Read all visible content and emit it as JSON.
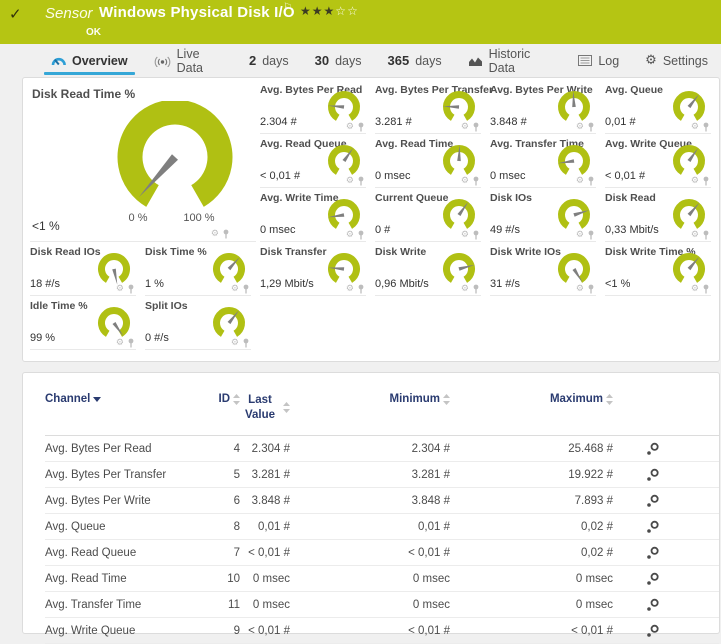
{
  "header": {
    "check": "✓",
    "sensor_label": "Sensor",
    "title": "Windows Physical Disk I/O",
    "flag": "⚐",
    "stars_filled": 3,
    "stars_total": 5,
    "status": "OK"
  },
  "tabs": [
    {
      "id": "overview",
      "icon": "overview-icon",
      "label": "Overview",
      "active": true
    },
    {
      "id": "live-data",
      "icon": "live-data-icon",
      "label": "Live Data",
      "active": false
    },
    {
      "id": "2-days",
      "prefix": "2",
      "label": "days",
      "active": false
    },
    {
      "id": "30-days",
      "prefix": "30",
      "label": "days",
      "active": false
    },
    {
      "id": "365-days",
      "prefix": "365",
      "label": "days",
      "active": false
    },
    {
      "id": "historic-data",
      "icon": "historic-data-icon",
      "label": "Historic Data",
      "active": false
    },
    {
      "id": "log",
      "icon": "log-icon",
      "label": "Log",
      "active": false
    },
    {
      "id": "settings",
      "icon": "settings-gear-icon",
      "label": "Settings",
      "active": false
    }
  ],
  "main_gauge": {
    "label": "Disk Read Time %",
    "value": "<1 %",
    "min_label": "0 %",
    "max_label": "100 %",
    "needle_angle": 222
  },
  "small_gauges": [
    {
      "label": "Avg. Bytes Per Read",
      "value": "2.304 #",
      "angle": 275
    },
    {
      "label": "Avg. Bytes Per Transfer",
      "value": "3.281 #",
      "angle": 272
    },
    {
      "label": "Avg. Bytes Per Write",
      "value": "3.848 #",
      "angle": 357
    },
    {
      "label": "Avg. Queue",
      "value": "0,01 #",
      "angle": 38
    },
    {
      "label": "Avg. Read Queue",
      "value": "< 0,01 #",
      "angle": 35
    },
    {
      "label": "Avg. Read Time",
      "value": "0 msec",
      "angle": 2
    },
    {
      "label": "Avg. Transfer Time",
      "value": "0 msec",
      "angle": 262
    },
    {
      "label": "Avg. Write Queue",
      "value": "< 0,01 #",
      "angle": 35
    },
    {
      "label": "Avg. Write Time",
      "value": "0 msec",
      "angle": 262
    },
    {
      "label": "Current Queue",
      "value": "0 #",
      "angle": 35
    },
    {
      "label": "Disk IOs",
      "value": "49 #/s",
      "angle": 72
    },
    {
      "label": "Disk Read",
      "value": "0,33 Mbit/s",
      "angle": 40
    },
    {
      "label": "Disk Read IOs",
      "value": "18 #/s",
      "angle": 168
    },
    {
      "label": "Disk Time %",
      "value": "1 %",
      "angle": 42
    },
    {
      "label": "Disk Transfer",
      "value": "1,29 Mbit/s",
      "angle": 275
    },
    {
      "label": "Disk Write",
      "value": "0,96 Mbit/s",
      "angle": 75
    },
    {
      "label": "Disk Write IOs",
      "value": "31 #/s",
      "angle": 148
    },
    {
      "label": "Disk Write Time %",
      "value": "<1 %",
      "angle": 40
    },
    {
      "label": "Idle Time %",
      "value": "99 %",
      "angle": 145
    },
    {
      "label": "Split IOs",
      "value": "0 #/s",
      "angle": 38
    }
  ],
  "table": {
    "columns": [
      {
        "label": "Channel",
        "sort": "active"
      },
      {
        "label": "ID",
        "sort": "both"
      },
      {
        "label": "Last Value",
        "sort": "both"
      },
      {
        "label": "Minimum",
        "sort": "both"
      },
      {
        "label": "Maximum",
        "sort": "both"
      },
      {
        "label": "",
        "sort": "none"
      }
    ],
    "rows": [
      {
        "channel": "Avg. Bytes Per Read",
        "id": "4",
        "last": "2.304 #",
        "min": "2.304 #",
        "max": "25.468 #"
      },
      {
        "channel": "Avg. Bytes Per Transfer",
        "id": "5",
        "last": "3.281 #",
        "min": "3.281 #",
        "max": "19.922 #"
      },
      {
        "channel": "Avg. Bytes Per Write",
        "id": "6",
        "last": "3.848 #",
        "min": "3.848 #",
        "max": "7.893 #"
      },
      {
        "channel": "Avg. Queue",
        "id": "8",
        "last": "0,01 #",
        "min": "0,01 #",
        "max": "0,02 #"
      },
      {
        "channel": "Avg. Read Queue",
        "id": "7",
        "last": "< 0,01 #",
        "min": "< 0,01 #",
        "max": "0,02 #"
      },
      {
        "channel": "Avg. Read Time",
        "id": "10",
        "last": "0 msec",
        "min": "0 msec",
        "max": "0 msec"
      },
      {
        "channel": "Avg. Transfer Time",
        "id": "11",
        "last": "0 msec",
        "min": "0 msec",
        "max": "0 msec"
      },
      {
        "channel": "Avg. Write Queue",
        "id": "9",
        "last": "< 0,01 #",
        "min": "< 0,01 #",
        "max": "< 0,01 #"
      }
    ]
  },
  "colors": {
    "header_olive": "#b5c513",
    "gauge_green": "#b0c013",
    "needle_gray": "#7f7f7f",
    "tab_underline_blue": "#35a7d7",
    "table_header_navy": "#2a3b70",
    "icon_gray": "#bdbdbd"
  }
}
